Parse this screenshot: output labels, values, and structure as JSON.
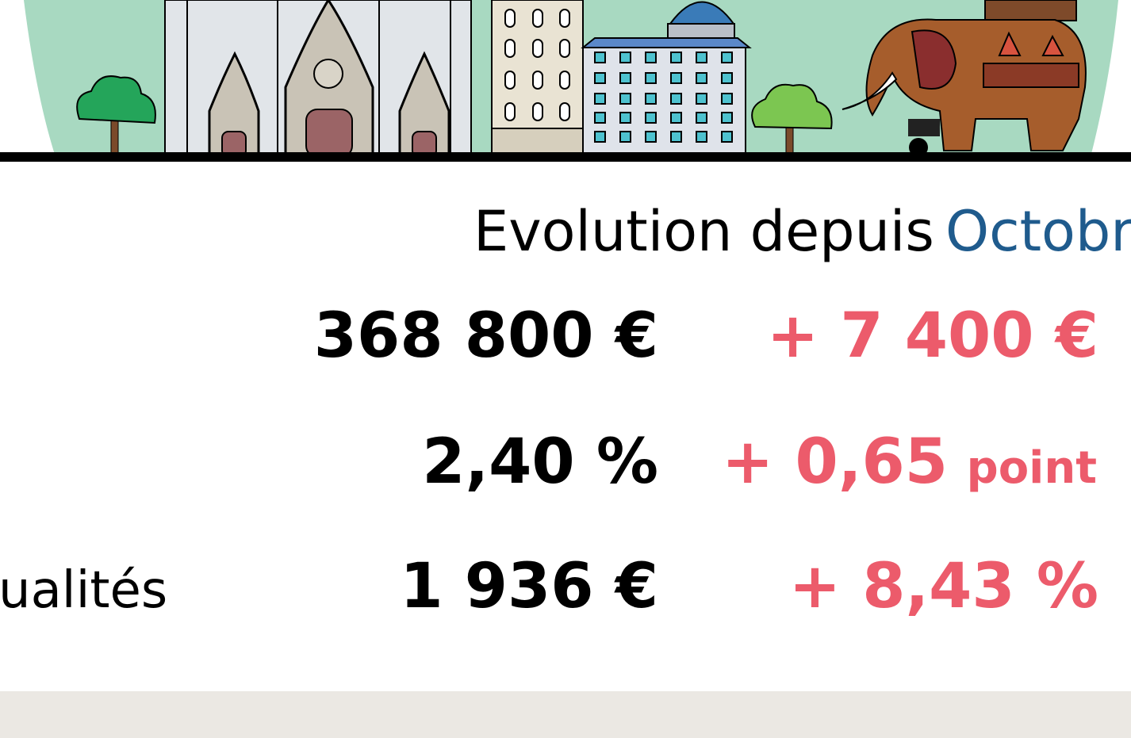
{
  "header": {
    "prefix": "Evolution depuis",
    "highlight": "Octobr"
  },
  "rows": [
    {
      "value": "368 800 €",
      "change": "+ 7 400 €"
    },
    {
      "value": "2,40 %",
      "change": "+ 0,65",
      "change_unit": "point"
    },
    {
      "label": "ualités",
      "value": "1 936 €",
      "change": "+ 8,43 %"
    }
  ]
}
